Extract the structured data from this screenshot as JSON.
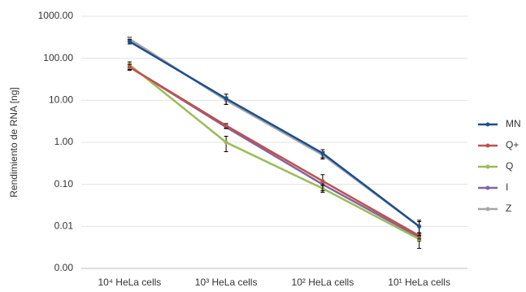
{
  "chart_data": {
    "type": "line",
    "y_label": "Rendimiento de RNA [ng]",
    "categories": [
      "10⁴ HeLa cells",
      "10³ HeLa cells",
      "10² HeLa cells",
      "10¹ HeLa cells"
    ],
    "log_y": true,
    "grid": true,
    "legend": "right",
    "ylim": [
      0.001,
      1000
    ],
    "yticks": [
      {
        "value": 0.001,
        "label": "0.00"
      },
      0.01,
      {
        "value": 0.1,
        "label": "0.10"
      },
      {
        "value": 1,
        "label": "1.00"
      },
      {
        "value": 10,
        "label": "10.00"
      },
      {
        "value": 100,
        "label": "100.00"
      },
      {
        "value": 1000,
        "label": "1000.00"
      }
    ],
    "series": [
      {
        "name": "MN",
        "color": "#1f4e8c",
        "values": [
          250,
          11,
          0.55,
          0.01
        ],
        "errors": [
          30,
          3,
          0.12,
          0.004
        ]
      },
      {
        "name": "Q+",
        "color": "#c0504d",
        "values": [
          62,
          2.5,
          0.12,
          0.006
        ],
        "errors": [
          10,
          0.3,
          0.05,
          0.001
        ]
      },
      {
        "name": "Q",
        "color": "#9bbb59",
        "values": [
          70,
          1.0,
          0.08,
          0.005
        ],
        "errors": [
          12,
          0.4,
          0.015,
          0.002
        ]
      },
      {
        "name": "I",
        "color": "#8064a2",
        "values": [
          62,
          2.3,
          0.1,
          0.0055
        ],
        "errors": [
          8,
          0.2,
          0.02,
          0.001
        ]
      },
      {
        "name": "Z",
        "color": "#a6a6a6",
        "values": [
          290,
          10,
          0.5,
          0.01
        ],
        "errors": [
          30,
          2,
          0.1,
          0.003
        ]
      }
    ]
  }
}
